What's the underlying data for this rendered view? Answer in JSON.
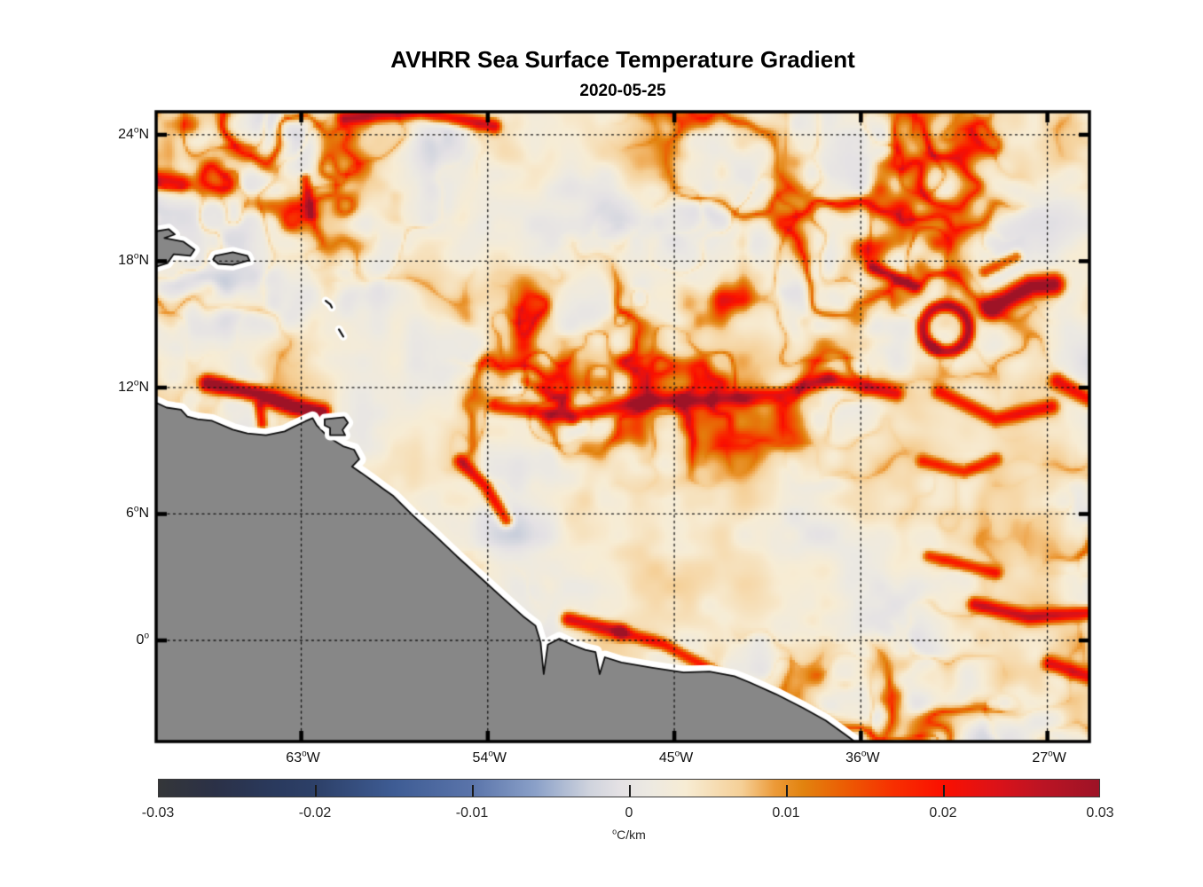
{
  "title": "AVHRR Sea Surface Temperature Gradient",
  "subtitle": "2020-05-25",
  "chart_data": {
    "type": "heatmap",
    "description": "Satellite sea surface temperature gradient magnitude map off northeastern South America; cream/orange/red filaments over ocean, gray land mask with white coastal missing-data band, dotted lat/lon graticule.",
    "x_axis": {
      "kind": "longitude",
      "range_deg_east": [
        -70.0,
        -24.97
      ],
      "ticks": [
        {
          "value": -63,
          "num": "63",
          "deg": "o",
          "hemi": "W"
        },
        {
          "value": -54,
          "num": "54",
          "deg": "o",
          "hemi": "W"
        },
        {
          "value": -45,
          "num": "45",
          "deg": "o",
          "hemi": "W"
        },
        {
          "value": -36,
          "num": "36",
          "deg": "o",
          "hemi": "W"
        },
        {
          "value": -27,
          "num": "27",
          "deg": "o",
          "hemi": "W"
        }
      ]
    },
    "y_axis": {
      "kind": "latitude",
      "range_deg_north": [
        -4.8,
        25.09
      ],
      "ticks": [
        {
          "value": 24,
          "num": "24",
          "deg": "o",
          "hemi": "N"
        },
        {
          "value": 18,
          "num": "18",
          "deg": "o",
          "hemi": "N"
        },
        {
          "value": 12,
          "num": "12",
          "deg": "o",
          "hemi": "N"
        },
        {
          "value": 6,
          "num": "6",
          "deg": "o",
          "hemi": "N"
        },
        {
          "value": 0,
          "num": "0",
          "deg": "o",
          "hemi": ""
        }
      ]
    },
    "grid": {
      "style": "dotted",
      "color": "#141414"
    },
    "colorbar": {
      "orientation": "horizontal",
      "range": [
        -0.03,
        0.03
      ],
      "tick_values": [
        -0.03,
        -0.02,
        -0.01,
        0,
        0.01,
        0.02,
        0.03
      ],
      "tick_labels": [
        "-0.03",
        "-0.02",
        "-0.01",
        "0",
        "0.01",
        "0.02",
        "0.03"
      ],
      "unit_deg": "o",
      "unit_main": "C/km"
    },
    "colormap": [
      {
        "t": 0.0,
        "color": "#343639"
      },
      {
        "t": 0.06,
        "color": "#2b3147"
      },
      {
        "t": 0.125,
        "color": "#2a3a5e"
      },
      {
        "t": 0.167,
        "color": "#2d4068"
      },
      {
        "t": 0.25,
        "color": "#3e5c94"
      },
      {
        "t": 0.333,
        "color": "#5a74aa"
      },
      {
        "t": 0.4,
        "color": "#8aa0c8"
      },
      {
        "t": 0.458,
        "color": "#cfd3dd"
      },
      {
        "t": 0.49,
        "color": "#e4e1e4"
      },
      {
        "t": 0.52,
        "color": "#ece9e2"
      },
      {
        "t": 0.56,
        "color": "#f7ecd4"
      },
      {
        "t": 0.62,
        "color": "#f5cf96"
      },
      {
        "t": 0.655,
        "color": "#ec9a38"
      },
      {
        "t": 0.685,
        "color": "#e2830f"
      },
      {
        "t": 0.73,
        "color": "#ec5c03"
      },
      {
        "t": 0.78,
        "color": "#f73000"
      },
      {
        "t": 0.833,
        "color": "#fb1000"
      },
      {
        "t": 0.89,
        "color": "#dc1218"
      },
      {
        "t": 0.94,
        "color": "#bb1424"
      },
      {
        "t": 1.0,
        "color": "#9d1326"
      }
    ],
    "land": {
      "fill": "#878787",
      "outline": "#0d0d0d",
      "coast_halo": "#ffffff",
      "mainland": [
        [
          -70.6,
          11.3
        ],
        [
          -70.0,
          11.28
        ],
        [
          -69.5,
          11.05
        ],
        [
          -68.8,
          10.95
        ],
        [
          -68.5,
          10.62
        ],
        [
          -68.0,
          10.5
        ],
        [
          -67.3,
          10.42
        ],
        [
          -66.3,
          10.0
        ],
        [
          -65.6,
          9.82
        ],
        [
          -64.7,
          9.74
        ],
        [
          -63.8,
          9.92
        ],
        [
          -63.4,
          10.12
        ],
        [
          -62.8,
          10.4
        ],
        [
          -62.45,
          10.55
        ],
        [
          -62.25,
          10.2
        ],
        [
          -61.85,
          9.8
        ],
        [
          -61.45,
          9.5
        ],
        [
          -60.95,
          9.2
        ],
        [
          -60.45,
          9.05
        ],
        [
          -60.2,
          8.6
        ],
        [
          -60.55,
          8.25
        ],
        [
          -60.1,
          7.95
        ],
        [
          -59.6,
          7.6
        ],
        [
          -59.05,
          7.2
        ],
        [
          -58.55,
          6.85
        ],
        [
          -57.6,
          5.92
        ],
        [
          -56.55,
          4.98
        ],
        [
          -55.5,
          4.0
        ],
        [
          -54.4,
          3.02
        ],
        [
          -53.35,
          2.08
        ],
        [
          -52.3,
          1.15
        ],
        [
          -51.7,
          0.7
        ],
        [
          -51.45,
          -0.1
        ],
        [
          -51.3,
          -1.6
        ],
        [
          -51.1,
          -0.2
        ],
        [
          -50.55,
          0.08
        ],
        [
          -49.95,
          -0.2
        ],
        [
          -49.3,
          -0.45
        ],
        [
          -48.8,
          -0.55
        ],
        [
          -48.6,
          -1.6
        ],
        [
          -48.35,
          -0.8
        ],
        [
          -47.55,
          -1.05
        ],
        [
          -46.05,
          -1.3
        ],
        [
          -44.55,
          -1.52
        ],
        [
          -43.3,
          -1.48
        ],
        [
          -42.1,
          -1.7
        ],
        [
          -41.35,
          -2.0
        ],
        [
          -40.1,
          -2.55
        ],
        [
          -38.8,
          -3.2
        ],
        [
          -37.7,
          -3.8
        ],
        [
          -36.85,
          -4.4
        ],
        [
          -35.6,
          -5.3
        ],
        [
          -35.0,
          -6.2
        ],
        [
          -71.0,
          -6.2
        ]
      ],
      "islands": [
        [
          [
            -70.4,
            19.35
          ],
          [
            -69.4,
            19.52
          ],
          [
            -69.1,
            19.27
          ],
          [
            -69.6,
            19.1
          ],
          [
            -68.7,
            18.93
          ],
          [
            -68.15,
            18.54
          ],
          [
            -68.35,
            18.25
          ],
          [
            -69.15,
            18.33
          ],
          [
            -69.45,
            17.91
          ],
          [
            -70.0,
            17.74
          ],
          [
            -70.4,
            17.86
          ]
        ],
        [
          [
            -67.15,
            18.25
          ],
          [
            -66.3,
            18.42
          ],
          [
            -65.6,
            18.25
          ],
          [
            -65.5,
            18.04
          ],
          [
            -66.3,
            17.82
          ],
          [
            -67.0,
            17.87
          ],
          [
            -67.25,
            18.08
          ]
        ],
        [
          [
            -61.87,
            10.5
          ],
          [
            -60.93,
            10.59
          ],
          [
            -60.75,
            10.33
          ],
          [
            -61.01,
            9.99
          ],
          [
            -60.88,
            9.74
          ],
          [
            -61.61,
            9.74
          ],
          [
            -61.61,
            10.08
          ],
          [
            -61.87,
            10.21
          ]
        ]
      ],
      "small_island_arcs": [
        [
          [
            -61.82,
            16.12
          ],
          [
            -61.6,
            15.95
          ],
          [
            -61.52,
            15.8
          ]
        ],
        [
          [
            -61.18,
            14.76
          ],
          [
            -60.97,
            14.42
          ]
        ]
      ]
    },
    "features": [
      {
        "kind": "ridge",
        "path": [
          [
            -67.5,
            12.2
          ],
          [
            -65.1,
            11.7
          ],
          [
            -63.4,
            11.1
          ],
          [
            -62.0,
            10.8
          ]
        ],
        "amp": 0.031,
        "w": 9
      },
      {
        "kind": "ridge",
        "path": [
          [
            -65.0,
            11.1
          ],
          [
            -64.9,
            10.3
          ]
        ],
        "amp": 0.018,
        "w": 6
      },
      {
        "kind": "ridge",
        "path": [
          [
            -53.6,
            11.1
          ],
          [
            -50.1,
            10.6
          ],
          [
            -46.7,
            11.3
          ],
          [
            -43.3,
            11.4
          ],
          [
            -39.9,
            11.7
          ],
          [
            -37.5,
            12.4
          ],
          [
            -34.3,
            11.7
          ]
        ],
        "amp": 0.016,
        "w": 8
      },
      {
        "kind": "ridge",
        "path": [
          [
            -37.5,
            12.4
          ]
        ],
        "amp": 0.01,
        "w": 11
      },
      {
        "kind": "ring",
        "center": [
          -31.9,
          14.8
        ],
        "radius_deg": 1.1,
        "amp": 0.024,
        "w": 7
      },
      {
        "kind": "ridge",
        "path": [
          [
            -32.5,
            13.9
          ]
        ],
        "amp": 0.01,
        "w": 8
      },
      {
        "kind": "ridge",
        "path": [
          [
            -29.7,
            15.8
          ],
          [
            -27.8,
            16.8
          ],
          [
            -26.7,
            16.9
          ]
        ],
        "amp": 0.03,
        "w": 12
      },
      {
        "kind": "ridge",
        "path": [
          [
            -26.5,
            12.3
          ],
          [
            -24.9,
            11.4
          ]
        ],
        "amp": 0.019,
        "w": 9
      },
      {
        "kind": "ridge",
        "path": [
          [
            -60.9,
            24.8
          ],
          [
            -57.2,
            25.1
          ],
          [
            -53.7,
            24.4
          ]
        ],
        "amp": 0.021,
        "w": 8
      },
      {
        "kind": "ridge",
        "path": [
          [
            -70.2,
            21.9
          ],
          [
            -68.8,
            21.7
          ]
        ],
        "amp": 0.018,
        "w": 10
      },
      {
        "kind": "ridge",
        "path": [
          [
            -62.8,
            21.9
          ],
          [
            -62.5,
            20.2
          ]
        ],
        "amp": 0.015,
        "w": 6
      },
      {
        "kind": "ridge",
        "path": [
          [
            -55.3,
            8.5
          ],
          [
            -54.1,
            7.3
          ],
          [
            -53.1,
            5.7
          ]
        ],
        "amp": 0.019,
        "w": 7
      },
      {
        "kind": "ridge",
        "path": [
          [
            -50.1,
            1.0
          ],
          [
            -47.6,
            0.4
          ]
        ],
        "amp": 0.021,
        "w": 8
      },
      {
        "kind": "ridge",
        "path": [
          [
            -47.6,
            0.4
          ],
          [
            -45.5,
            -0.2
          ],
          [
            -43.6,
            -1.2
          ],
          [
            -41.9,
            -2.3
          ]
        ],
        "amp": 0.017,
        "w": 7
      },
      {
        "kind": "ridge",
        "path": [
          [
            -42.4,
            -2.3
          ]
        ],
        "amp": 0.008,
        "w": 9
      },
      {
        "kind": "ridge",
        "path": [
          [
            -30.5,
            1.7
          ],
          [
            -27.9,
            1.1
          ],
          [
            -25.1,
            1.3
          ]
        ],
        "amp": 0.02,
        "w": 8
      },
      {
        "kind": "ridge",
        "path": [
          [
            -32.7,
            4.0
          ],
          [
            -29.5,
            3.2
          ]
        ],
        "amp": 0.015,
        "w": 7
      },
      {
        "kind": "ridge",
        "path": [
          [
            -26.9,
            -1.1
          ],
          [
            -24.2,
            -2.0
          ]
        ],
        "amp": 0.018,
        "w": 8
      },
      {
        "kind": "ridge",
        "path": [
          [
            -32.2,
            11.8
          ],
          [
            -29.5,
            10.5
          ],
          [
            -26.8,
            11.1
          ]
        ],
        "amp": 0.016,
        "w": 8
      },
      {
        "kind": "ridge",
        "path": [
          [
            -35.4,
            17.7
          ],
          [
            -33.4,
            16.8
          ]
        ],
        "amp": 0.016,
        "w": 7
      },
      {
        "kind": "ridge",
        "path": [
          [
            -52.2,
            12.3
          ],
          [
            -50.5,
            11.4
          ],
          [
            -49.9,
            10.5
          ]
        ],
        "amp": 0.011,
        "w": 7
      },
      {
        "kind": "ridge",
        "path": [
          [
            -30.0,
            17.5
          ],
          [
            -28.5,
            18.2
          ]
        ],
        "amp": 0.014,
        "w": 7
      },
      {
        "kind": "ridge",
        "path": [
          [
            -33.0,
            8.5
          ],
          [
            -31.0,
            8.0
          ],
          [
            -29.5,
            8.6
          ]
        ],
        "amp": 0.014,
        "w": 7
      }
    ]
  }
}
